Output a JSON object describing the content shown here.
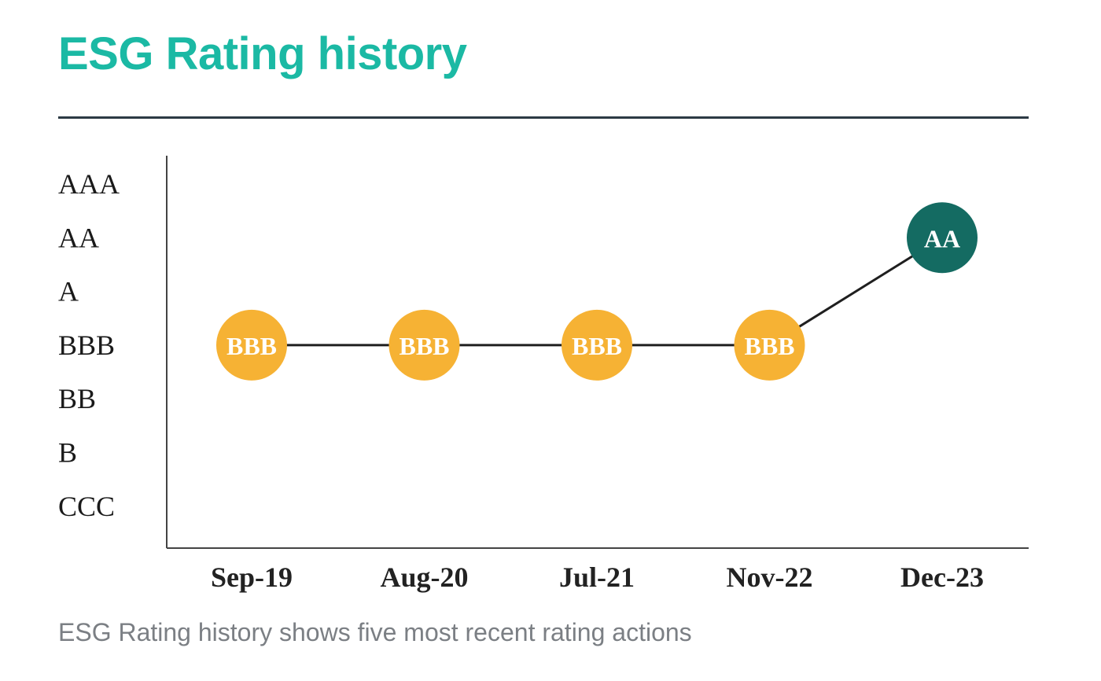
{
  "title": "ESG Rating history",
  "caption": "ESG Rating history shows five most recent rating actions",
  "colors": {
    "title": "#1bb9a4",
    "rule": "#2c3a44",
    "bbb_marker": "#f6b234",
    "aa_marker": "#146b62",
    "line": "#1f1f1f"
  },
  "chart_data": {
    "type": "line",
    "title": "",
    "xlabel": "",
    "ylabel": "",
    "y_categories": [
      "AAA",
      "AA",
      "A",
      "BBB",
      "BB",
      "B",
      "CCC"
    ],
    "x": [
      "Sep-19",
      "Aug-20",
      "Jul-21",
      "Nov-22",
      "Dec-23"
    ],
    "values": [
      "BBB",
      "BBB",
      "BBB",
      "BBB",
      "AA"
    ],
    "marker_colors": [
      "#f6b234",
      "#f6b234",
      "#f6b234",
      "#f6b234",
      "#146b62"
    ],
    "grid": false,
    "legend": "none"
  }
}
